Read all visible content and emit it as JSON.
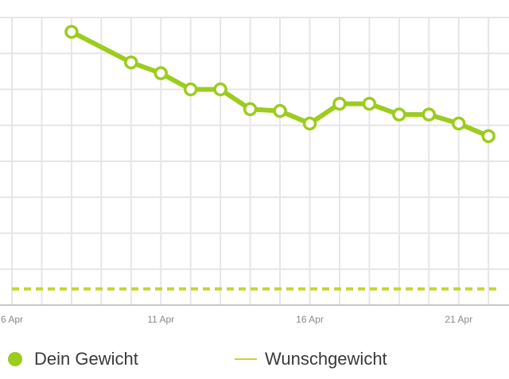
{
  "colors": {
    "series": "#9ccc1e",
    "target": "#c5d62a",
    "grid": "#e6e6e6",
    "axis": "#c8c8c8",
    "tick_text": "#8a8a8a"
  },
  "legend": {
    "weight_label": "Dein Gewicht",
    "target_label": "Wunschgewicht"
  },
  "chart_data": {
    "type": "line",
    "x_axis": {
      "unit": "day",
      "range": [
        "6 Apr",
        "22 Apr"
      ],
      "ticks": [
        "6 Apr",
        "11 Apr",
        "16 Apr",
        "21 Apr"
      ],
      "tick_days": [
        6,
        11,
        16,
        21
      ]
    },
    "y_range": [
      0,
      8
    ],
    "grid": true,
    "series": [
      {
        "role": "weight",
        "x": [
          8,
          10,
          11,
          12,
          13,
          14,
          15,
          16,
          17,
          18,
          19,
          20,
          21,
          22
        ],
        "values": [
          7.6,
          6.75,
          6.45,
          6.0,
          6.0,
          5.45,
          5.4,
          5.05,
          5.6,
          5.6,
          5.3,
          5.3,
          5.05,
          4.7
        ],
        "markers": "hollow-circle"
      }
    ],
    "target_line": {
      "role": "target",
      "value": 0.45,
      "style": "dashed"
    },
    "legend_position": "bottom"
  }
}
